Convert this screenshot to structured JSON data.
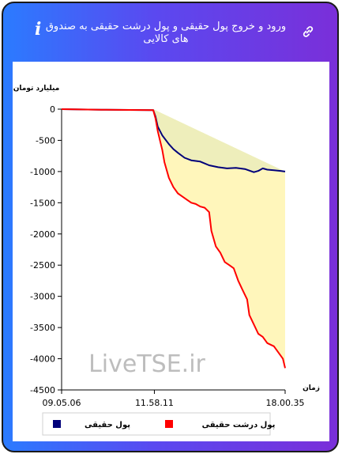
{
  "header": {
    "title": "ورود و خروج پول حقیقی و پول درشت حقیقی به صندوق های کالایی",
    "info_icon": "info-icon",
    "link_icon": "link-icon"
  },
  "watermark": "LiveTSE.ir",
  "colors": {
    "series_real": "#00007a",
    "series_big": "#ff0000",
    "fill_real": "#eeeebb",
    "fill_big": "#fff6bb"
  },
  "chart_data": {
    "type": "line",
    "ylabel": "میلیارد تومان",
    "xlabel": "زمان",
    "ylim": [
      -4500,
      0
    ],
    "yticks": [
      0,
      -500,
      -1000,
      -1500,
      -2000,
      -2500,
      -3000,
      -3500,
      -4000,
      -4500
    ],
    "xlim": [
      0,
      100
    ],
    "x_ticks": [
      {
        "pos": 0,
        "label": "09.05.06"
      },
      {
        "pos": 41.5,
        "label": "11.58.11"
      },
      {
        "pos": 100,
        "label": "18.00.35"
      }
    ],
    "grid": false,
    "legend": "bottom",
    "series": [
      {
        "name": "پول حقیقی",
        "color": "#00007a",
        "points": [
          [
            0,
            0
          ],
          [
            20,
            -10
          ],
          [
            41,
            -15
          ],
          [
            42,
            -120
          ],
          [
            43,
            -280
          ],
          [
            45,
            -420
          ],
          [
            48,
            -560
          ],
          [
            50,
            -640
          ],
          [
            52,
            -700
          ],
          [
            55,
            -780
          ],
          [
            58,
            -820
          ],
          [
            62,
            -840
          ],
          [
            66,
            -900
          ],
          [
            70,
            -930
          ],
          [
            74,
            -950
          ],
          [
            78,
            -940
          ],
          [
            82,
            -960
          ],
          [
            86,
            -1010
          ],
          [
            88,
            -990
          ],
          [
            90,
            -950
          ],
          [
            92,
            -970
          ],
          [
            95,
            -980
          ],
          [
            98,
            -990
          ],
          [
            100,
            -1000
          ]
        ]
      },
      {
        "name": "پول درشت حقیقی",
        "color": "#ff0000",
        "points": [
          [
            0,
            0
          ],
          [
            20,
            -10
          ],
          [
            41,
            -15
          ],
          [
            42,
            -150
          ],
          [
            43,
            -350
          ],
          [
            44,
            -500
          ],
          [
            45,
            -650
          ],
          [
            46,
            -850
          ],
          [
            48,
            -1100
          ],
          [
            50,
            -1250
          ],
          [
            52,
            -1350
          ],
          [
            54,
            -1400
          ],
          [
            56,
            -1450
          ],
          [
            58,
            -1500
          ],
          [
            60,
            -1520
          ],
          [
            62,
            -1560
          ],
          [
            64,
            -1580
          ],
          [
            66,
            -1650
          ],
          [
            67,
            -1950
          ],
          [
            69,
            -2200
          ],
          [
            71,
            -2300
          ],
          [
            73,
            -2450
          ],
          [
            75,
            -2500
          ],
          [
            77,
            -2550
          ],
          [
            79,
            -2750
          ],
          [
            81,
            -2900
          ],
          [
            83,
            -3050
          ],
          [
            84,
            -3300
          ],
          [
            86,
            -3450
          ],
          [
            88,
            -3600
          ],
          [
            90,
            -3650
          ],
          [
            92,
            -3750
          ],
          [
            95,
            -3800
          ],
          [
            97,
            -3900
          ],
          [
            99,
            -4000
          ],
          [
            100,
            -4150
          ]
        ]
      }
    ]
  }
}
